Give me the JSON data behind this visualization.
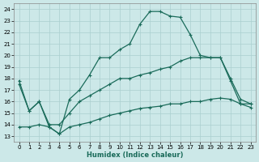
{
  "xlabel": "Humidex (Indice chaleur)",
  "ylabel": "",
  "xlim": [
    -0.5,
    23.5
  ],
  "ylim": [
    12.5,
    24.5
  ],
  "xticks": [
    0,
    1,
    2,
    3,
    4,
    5,
    6,
    7,
    8,
    9,
    10,
    11,
    12,
    13,
    14,
    15,
    16,
    17,
    18,
    19,
    20,
    21,
    22,
    23
  ],
  "yticks": [
    13,
    14,
    15,
    16,
    17,
    18,
    19,
    20,
    21,
    22,
    23,
    24
  ],
  "bg_color": "#cce8e8",
  "grid_color": "#aacfcf",
  "line_color": "#1a6b5a",
  "line1_x": [
    0,
    1,
    2,
    3,
    4,
    5,
    6,
    7,
    8,
    9,
    10,
    11,
    12,
    13,
    14,
    15,
    16,
    17,
    18,
    19,
    20,
    21,
    22,
    23
  ],
  "line1_y": [
    17.8,
    15.2,
    16.0,
    13.8,
    13.2,
    16.2,
    17.0,
    18.3,
    19.8,
    19.8,
    20.5,
    21.0,
    22.7,
    23.8,
    23.8,
    23.4,
    23.3,
    21.8,
    20.0,
    19.8,
    19.8,
    17.8,
    15.8,
    15.8
  ],
  "line2_x": [
    0,
    1,
    2,
    3,
    4,
    5,
    6,
    7,
    8,
    9,
    10,
    11,
    12,
    13,
    14,
    15,
    16,
    17,
    18,
    19,
    20,
    21,
    22,
    23
  ],
  "line2_y": [
    17.5,
    15.2,
    16.0,
    14.0,
    14.0,
    15.0,
    16.0,
    16.5,
    17.0,
    17.5,
    18.0,
    18.0,
    18.3,
    18.5,
    18.8,
    19.0,
    19.5,
    19.8,
    19.8,
    19.8,
    19.8,
    18.0,
    16.2,
    15.8
  ],
  "line3_x": [
    0,
    1,
    2,
    3,
    4,
    5,
    6,
    7,
    8,
    9,
    10,
    11,
    12,
    13,
    14,
    15,
    16,
    17,
    18,
    19,
    20,
    21,
    22,
    23
  ],
  "line3_y": [
    13.8,
    13.8,
    14.0,
    13.8,
    13.2,
    13.8,
    14.0,
    14.2,
    14.5,
    14.8,
    15.0,
    15.2,
    15.4,
    15.5,
    15.6,
    15.8,
    15.8,
    16.0,
    16.0,
    16.2,
    16.3,
    16.2,
    15.8,
    15.5
  ]
}
